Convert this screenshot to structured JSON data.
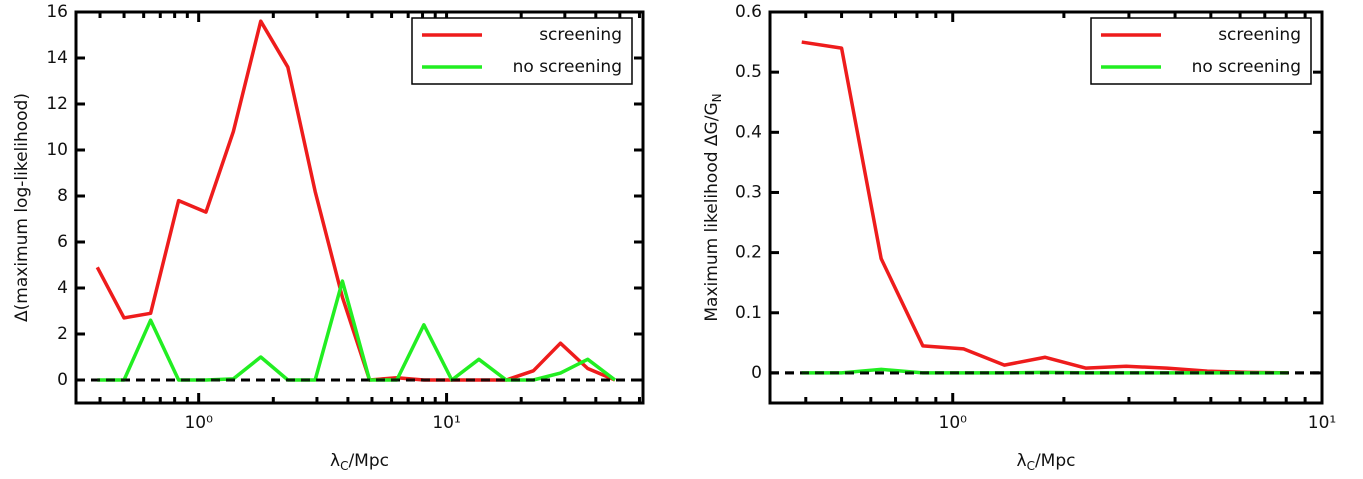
{
  "chart_data": [
    {
      "type": "line",
      "xscale": "log",
      "legend": "upper right",
      "xlabel": [
        "λ",
        "C",
        "/Mpc"
      ],
      "ylabel": [
        "Δ(maximum log-likelihood)"
      ],
      "x": [
        0.39,
        0.5,
        0.64,
        0.83,
        1.07,
        1.38,
        1.78,
        2.29,
        2.95,
        3.8,
        4.89,
        6.3,
        8.1,
        10.5,
        13.5,
        17.4,
        22.4,
        28.8,
        37.1,
        47.8
      ],
      "xlim": [
        0.32,
        62
      ],
      "ylim": [
        -1,
        16
      ],
      "xticks": [
        {
          "value": 1,
          "label": "10⁰"
        },
        {
          "value": 10,
          "label": "10¹"
        }
      ],
      "xminorticks": [
        0.4,
        0.5,
        0.6,
        0.7,
        0.8,
        0.9,
        2,
        3,
        4,
        5,
        6,
        7,
        8,
        9,
        20,
        30,
        40,
        50,
        60
      ],
      "yticks": [
        0,
        2,
        4,
        6,
        8,
        10,
        12,
        14,
        16
      ],
      "series": [
        {
          "name": "screening",
          "color": "#ee1c1c",
          "values": [
            4.9,
            2.7,
            2.9,
            7.8,
            7.3,
            10.8,
            15.6,
            13.6,
            8.2,
            3.6,
            0.0,
            0.1,
            0.0,
            0.0,
            0.0,
            0.0,
            0.4,
            1.6,
            0.5,
            0.0
          ]
        },
        {
          "name": "no screening",
          "color": "#22ee22",
          "values": [
            0,
            0,
            2.6,
            0,
            0,
            0.05,
            1.0,
            0,
            0,
            4.3,
            0,
            0,
            2.4,
            0,
            0.9,
            0,
            0,
            0.3,
            0.9,
            0
          ]
        }
      ]
    },
    {
      "type": "line",
      "xscale": "log",
      "legend": "upper right",
      "xlabel": [
        "λ",
        "C",
        "/Mpc"
      ],
      "ylabel": [
        "Maximum likelihood ΔG/G",
        "N",
        ""
      ],
      "x": [
        0.39,
        0.5,
        0.64,
        0.83,
        1.07,
        1.38,
        1.78,
        2.29,
        2.95,
        3.8,
        4.89,
        6.3,
        8.1
      ],
      "xlim": [
        0.32,
        10
      ],
      "ylim": [
        -0.05,
        0.6
      ],
      "xticks": [
        {
          "value": 1,
          "label": "10⁰"
        },
        {
          "value": 10,
          "label": "10¹"
        }
      ],
      "xminorticks": [
        0.4,
        0.5,
        0.6,
        0.7,
        0.8,
        0.9,
        2,
        3,
        4,
        5,
        6,
        7,
        8,
        9
      ],
      "yticks": [
        0,
        0.1,
        0.2,
        0.3,
        0.4,
        0.5,
        0.6
      ],
      "series": [
        {
          "name": "screening",
          "color": "#ee1c1c",
          "values": [
            0.55,
            0.54,
            0.19,
            0.045,
            0.04,
            0.013,
            0.026,
            0.008,
            0.011,
            0.008,
            0.003,
            0.001,
            0.0
          ]
        },
        {
          "name": "no screening",
          "color": "#22ee22",
          "values": [
            0,
            0,
            0.006,
            0,
            0,
            0,
            0.001,
            0,
            0,
            0,
            0,
            0,
            0
          ]
        }
      ]
    }
  ]
}
